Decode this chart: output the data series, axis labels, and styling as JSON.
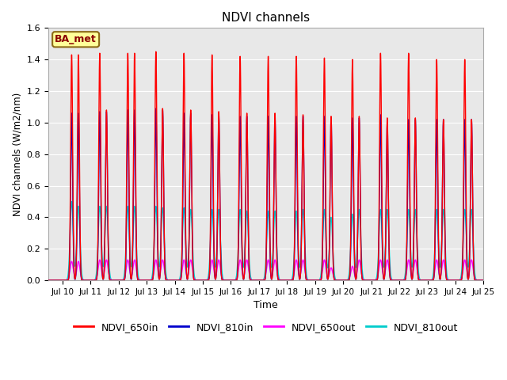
{
  "title": "NDVI channels",
  "xlabel": "Time",
  "ylabel": "NDVI channels (W/m2/nm)",
  "ylim": [
    0,
    1.6
  ],
  "xlim_start": 9.5,
  "xlim_end": 25,
  "background_color": "#e8e8e8",
  "label_box_text": "BA_met",
  "label_box_color": "#ffff99",
  "label_box_edge": "#8b6914",
  "label_box_text_color": "#8b0000",
  "line_650in_color": "#ff0000",
  "line_810in_color": "#0000cc",
  "line_650out_color": "#ff00ff",
  "line_810out_color": "#00cccc",
  "lw_in": 1.0,
  "lw_out": 1.0,
  "tick_labels": [
    "Jul 10",
    "Jul 11",
    "Jul 12",
    "Jul 13",
    "Jul 14",
    "Jul 15",
    "Jul 16",
    "Jul 17",
    "Jul 18",
    "Jul 19",
    "Jul 20",
    "Jul 21",
    "Jul 22",
    "Jul 23",
    "Jul 24",
    "Jul 25"
  ],
  "legend_entries": [
    "NDVI_650in",
    "NDVI_810in",
    "NDVI_650out",
    "NDVI_810out"
  ],
  "legend_colors": [
    "#ff0000",
    "#0000cc",
    "#ff00ff",
    "#00cccc"
  ],
  "amp_650in": [
    1.43,
    1.43,
    1.44,
    1.08,
    1.44,
    1.44,
    1.45,
    1.09,
    1.44,
    1.08,
    1.43,
    1.07,
    1.42,
    1.06,
    1.42,
    1.06,
    1.42,
    1.05,
    1.41,
    1.04,
    1.4,
    1.04,
    1.44,
    1.03,
    1.44,
    1.03,
    1.4,
    1.02,
    1.4,
    1.02
  ],
  "amp_810in": [
    1.06,
    1.06,
    1.07,
    1.07,
    1.08,
    1.08,
    1.09,
    1.08,
    1.06,
    1.06,
    1.05,
    1.05,
    1.04,
    1.04,
    1.04,
    1.04,
    1.04,
    1.04,
    1.04,
    1.03,
    1.03,
    1.03,
    1.05,
    1.0,
    1.02,
    1.02,
    1.02,
    1.02,
    1.02,
    1.02
  ],
  "amp_650out": [
    0.12,
    0.12,
    0.13,
    0.13,
    0.13,
    0.13,
    0.13,
    0.13,
    0.13,
    0.13,
    0.13,
    0.13,
    0.13,
    0.13,
    0.13,
    0.13,
    0.13,
    0.13,
    0.13,
    0.08,
    0.09,
    0.13,
    0.13,
    0.13,
    0.13,
    0.13,
    0.13,
    0.13,
    0.13,
    0.13
  ],
  "amp_810out": [
    0.5,
    0.47,
    0.47,
    0.47,
    0.47,
    0.47,
    0.47,
    0.46,
    0.46,
    0.45,
    0.45,
    0.45,
    0.45,
    0.44,
    0.44,
    0.44,
    0.44,
    0.45,
    0.45,
    0.4,
    0.42,
    0.45,
    0.45,
    0.45,
    0.45,
    0.45,
    0.45,
    0.45,
    0.45,
    0.45
  ]
}
